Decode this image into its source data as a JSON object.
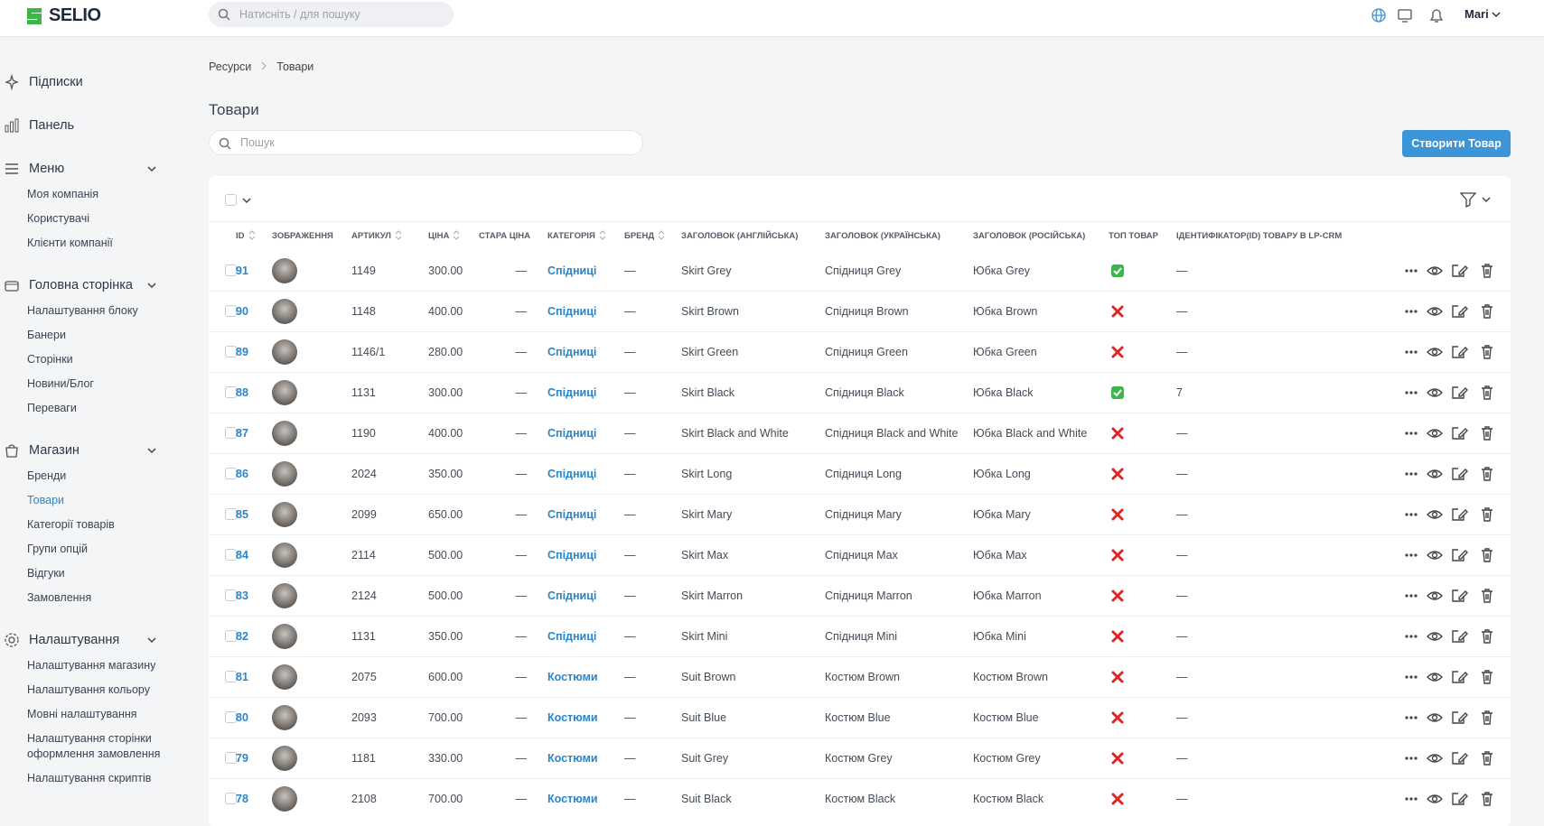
{
  "header": {
    "logo": "SELIO",
    "search_placeholder": "Натисніть / для пошуку",
    "user": "Mari"
  },
  "sidebar": [
    {
      "label": "Підписки",
      "icon": "spark"
    },
    {
      "label": "Панель",
      "icon": "chart"
    },
    {
      "label": "Меню",
      "icon": "menu",
      "items": [
        "Моя компанія",
        "Користувачі",
        "Клієнти компанії"
      ]
    },
    {
      "label": "Головна сторінка",
      "icon": "box",
      "items": [
        "Налаштування блоку",
        "Банери",
        "Сторінки",
        "Новини/Блог",
        "Переваги"
      ]
    },
    {
      "label": "Магазин",
      "icon": "bag",
      "items": [
        "Бренди",
        "Товари",
        "Категорії товарів",
        "Групи опцій",
        "Відгуки",
        "Замовлення"
      ]
    },
    {
      "label": "Налаштування",
      "icon": "gear",
      "items": [
        "Налаштування магазину",
        "Налаштування кольору",
        "Мовні налаштування",
        "Налаштування сторінки оформлення замовлення",
        "Налаштування скриптів"
      ]
    }
  ],
  "active_item": "Товари",
  "breadcrumb": [
    "Ресурси",
    "Товари"
  ],
  "title": "Товари",
  "search_placeholder": "Пошук",
  "create_button": "Створити Товар",
  "table": {
    "columns": [
      "ID",
      "Зображення",
      "Артикул",
      "Ціна",
      "Стара ціна",
      "Категорія",
      "Бренд",
      "Заголовок (Англійська)",
      "Заголовок (Українська)",
      "Заголовок (Російська)",
      "Топ товар",
      "Ідентифікатор(ID) товару в LP-CRM"
    ],
    "rows": [
      {
        "id": "91",
        "sku": "1149",
        "price": "300.00",
        "old_price": "—",
        "category": "Спідниці",
        "brand": "—",
        "title_en": "Skirt Grey",
        "title_uk": "Спідниця Grey",
        "title_ru": "Юбка Grey",
        "top": true,
        "crm_id": "—"
      },
      {
        "id": "90",
        "sku": "1148",
        "price": "400.00",
        "old_price": "—",
        "category": "Спідниці",
        "brand": "—",
        "title_en": "Skirt Brown",
        "title_uk": "Спідниця Brown",
        "title_ru": "Юбка Brown",
        "top": false,
        "crm_id": "—"
      },
      {
        "id": "89",
        "sku": "1146/1",
        "price": "280.00",
        "old_price": "—",
        "category": "Спідниці",
        "brand": "—",
        "title_en": "Skirt Green",
        "title_uk": "Спідниця Green",
        "title_ru": "Юбка Green",
        "top": false,
        "crm_id": "—"
      },
      {
        "id": "88",
        "sku": "1131",
        "price": "300.00",
        "old_price": "—",
        "category": "Спідниці",
        "brand": "—",
        "title_en": "Skirt Black",
        "title_uk": "Спідниця Black",
        "title_ru": "Юбка Black",
        "top": true,
        "crm_id": "7"
      },
      {
        "id": "87",
        "sku": "1190",
        "price": "400.00",
        "old_price": "—",
        "category": "Спідниці",
        "brand": "—",
        "title_en": "Skirt Black and White",
        "title_uk": "Спідниця Black and White",
        "title_ru": "Юбка Black and White",
        "top": false,
        "crm_id": "—"
      },
      {
        "id": "86",
        "sku": "2024",
        "price": "350.00",
        "old_price": "—",
        "category": "Спідниці",
        "brand": "—",
        "title_en": "Skirt Long",
        "title_uk": "Спідниця Long",
        "title_ru": "Юбка Long",
        "top": false,
        "crm_id": "—"
      },
      {
        "id": "85",
        "sku": "2099",
        "price": "650.00",
        "old_price": "—",
        "category": "Спідниці",
        "brand": "—",
        "title_en": "Skirt Mary",
        "title_uk": "Спідниця Mary",
        "title_ru": "Юбка Mary",
        "top": false,
        "crm_id": "—"
      },
      {
        "id": "84",
        "sku": "2114",
        "price": "500.00",
        "old_price": "—",
        "category": "Спідниці",
        "brand": "—",
        "title_en": "Skirt Max",
        "title_uk": "Спідниця Max",
        "title_ru": "Юбка Max",
        "top": false,
        "crm_id": "—"
      },
      {
        "id": "83",
        "sku": "2124",
        "price": "500.00",
        "old_price": "—",
        "category": "Спідниці",
        "brand": "—",
        "title_en": "Skirt Marron",
        "title_uk": "Спідниця Marron",
        "title_ru": "Юбка Marron",
        "top": false,
        "crm_id": "—"
      },
      {
        "id": "82",
        "sku": "1131",
        "price": "350.00",
        "old_price": "—",
        "category": "Спідниці",
        "brand": "—",
        "title_en": "Skirt Mini",
        "title_uk": "Спідниця Mini",
        "title_ru": "Юбка Mini",
        "top": false,
        "crm_id": "—"
      },
      {
        "id": "81",
        "sku": "2075",
        "price": "600.00",
        "old_price": "—",
        "category": "Костюми",
        "brand": "—",
        "title_en": "Suit Brown",
        "title_uk": "Костюм Brown",
        "title_ru": "Костюм Brown",
        "top": false,
        "crm_id": "—"
      },
      {
        "id": "80",
        "sku": "2093",
        "price": "700.00",
        "old_price": "—",
        "category": "Костюми",
        "brand": "—",
        "title_en": "Suit Blue",
        "title_uk": "Костюм Blue",
        "title_ru": "Костюм Blue",
        "top": false,
        "crm_id": "—"
      },
      {
        "id": "79",
        "sku": "1181",
        "price": "330.00",
        "old_price": "—",
        "category": "Костюми",
        "brand": "—",
        "title_en": "Suit Grey",
        "title_uk": "Костюм Grey",
        "title_ru": "Костюм Grey",
        "top": false,
        "crm_id": "—"
      },
      {
        "id": "78",
        "sku": "2108",
        "price": "700.00",
        "old_price": "—",
        "category": "Костюми",
        "brand": "—",
        "title_en": "Suit Black",
        "title_uk": "Костюм Black",
        "title_ru": "Костюм Black",
        "top": false,
        "crm_id": "—"
      }
    ]
  }
}
